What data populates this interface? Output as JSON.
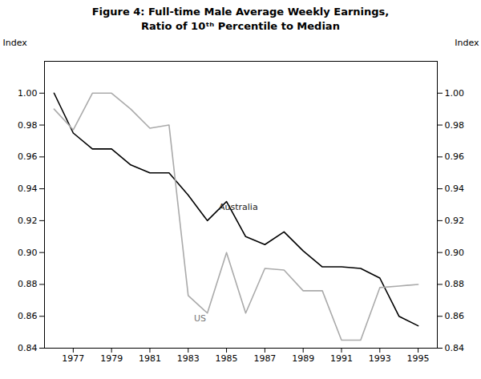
{
  "chart_data": {
    "type": "line",
    "title": "Figure 4: Full-time Male Average Weekly Earnings,",
    "subtitle": "Ratio of 10ᵗʰ Percentile to Median",
    "ylabel": "Index",
    "y2label": "Index",
    "x": [
      1976,
      1977,
      1978,
      1979,
      1980,
      1981,
      1982,
      1983,
      1984,
      1985,
      1986,
      1987,
      1988,
      1989,
      1990,
      1991,
      1992,
      1993,
      1994,
      1995
    ],
    "series": [
      {
        "name": "Australia",
        "color": "#000000",
        "values": [
          1.0,
          0.975,
          0.965,
          0.965,
          0.955,
          0.95,
          0.95,
          0.936,
          0.92,
          0.932,
          0.91,
          0.905,
          0.913,
          0.901,
          0.891,
          0.891,
          0.89,
          0.884,
          0.86,
          0.854
        ]
      },
      {
        "name": "US",
        "color": "#aaaaaa",
        "values": [
          0.99,
          0.977,
          1.0,
          1.0,
          0.99,
          0.978,
          0.98,
          0.873,
          0.862,
          0.9,
          0.862,
          0.89,
          0.889,
          0.876,
          0.876,
          0.845,
          0.845,
          0.878,
          0.879,
          0.88
        ]
      }
    ],
    "xlim": [
      1975.5,
      1996.0
    ],
    "xticks": [
      1977,
      1979,
      1981,
      1983,
      1985,
      1987,
      1989,
      1991,
      1993,
      1995
    ],
    "ylim": [
      0.84,
      1.02
    ],
    "yticks": [
      0.84,
      0.86,
      0.88,
      {
        "value": 0.9,
        "label": "0.90"
      },
      0.92,
      0.94,
      0.96,
      0.98,
      {
        "value": 1,
        "label": "1.00"
      }
    ],
    "y2lim": [
      0.84,
      1.02
    ],
    "y2ticks": [
      0.84,
      0.86,
      0.88,
      {
        "value": 0.9,
        "label": "0.90"
      },
      0.92,
      0.94,
      0.96,
      0.98,
      {
        "value": 1,
        "label": "1.00"
      }
    ],
    "annotations": [
      {
        "text": "Australia",
        "x": 1984.6,
        "y": 0.9265,
        "color": "#222222"
      },
      {
        "text": "US",
        "x": 1983.3,
        "y": 0.857,
        "color": "#777777"
      }
    ],
    "grid": false
  }
}
